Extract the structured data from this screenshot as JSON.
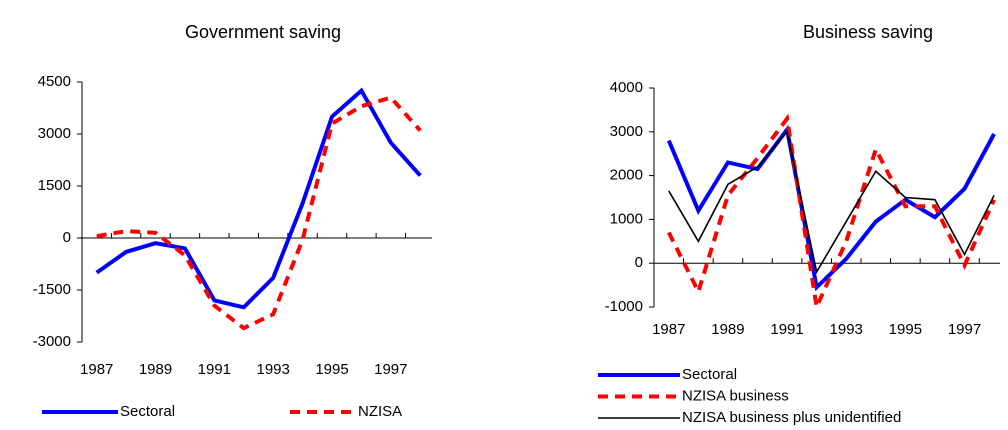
{
  "chart_data": [
    {
      "type": "line",
      "title": "Government saving",
      "x": [
        1987,
        1988,
        1989,
        1990,
        1991,
        1992,
        1993,
        1994,
        1995,
        1996,
        1997,
        1998
      ],
      "xlim": [
        1986.5,
        1998.4
      ],
      "xticks": [
        1987,
        1989,
        1991,
        1993,
        1995,
        1997
      ],
      "ylim": [
        -3000,
        4500
      ],
      "yticks": [
        -3000,
        -1500,
        0,
        1500,
        3000,
        4500
      ],
      "legend": "bottom",
      "series": [
        {
          "name": "Sectoral",
          "color": "#0000ff",
          "line_style": "solid",
          "weight": "thick",
          "values": [
            -1000,
            -400,
            -150,
            -300,
            -1800,
            -2000,
            -1150,
            1000,
            3500,
            4250,
            2750,
            1800
          ]
        },
        {
          "name": "NZISA",
          "color": "#ff0000",
          "line_style": "dashed",
          "weight": "thick",
          "values": [
            50,
            200,
            150,
            -500,
            -1950,
            -2600,
            -2200,
            -50,
            3300,
            3800,
            4050,
            3100
          ]
        }
      ]
    },
    {
      "type": "line",
      "title": "Business saving",
      "x": [
        1987,
        1988,
        1989,
        1990,
        1991,
        1992,
        1993,
        1994,
        1995,
        1996,
        1997,
        1998
      ],
      "xlim": [
        1986.5,
        1998.2
      ],
      "xticks": [
        1987,
        1989,
        1991,
        1993,
        1995,
        1997
      ],
      "ylim": [
        -1000,
        4000
      ],
      "yticks": [
        -1000,
        0,
        1000,
        2000,
        3000,
        4000
      ],
      "legend": "bottom",
      "series": [
        {
          "name": "Sectoral",
          "color": "#0000ff",
          "line_style": "solid",
          "weight": "thick",
          "values": [
            2800,
            1200,
            2300,
            2150,
            3050,
            -550,
            100,
            950,
            1450,
            1050,
            1700,
            2950
          ]
        },
        {
          "name": "NZISA business",
          "color": "#ff0000",
          "line_style": "dashed",
          "weight": "thick",
          "values": [
            700,
            -650,
            1550,
            2400,
            3300,
            -1000,
            500,
            2600,
            1300,
            1300,
            -50,
            1450
          ]
        },
        {
          "name": "NZISA business plus unidentified",
          "color": "#000000",
          "line_style": "solid",
          "weight": "thin",
          "values": [
            1650,
            500,
            1800,
            2200,
            3000,
            -200,
            950,
            2100,
            1500,
            1450,
            200,
            1550
          ]
        }
      ]
    }
  ]
}
